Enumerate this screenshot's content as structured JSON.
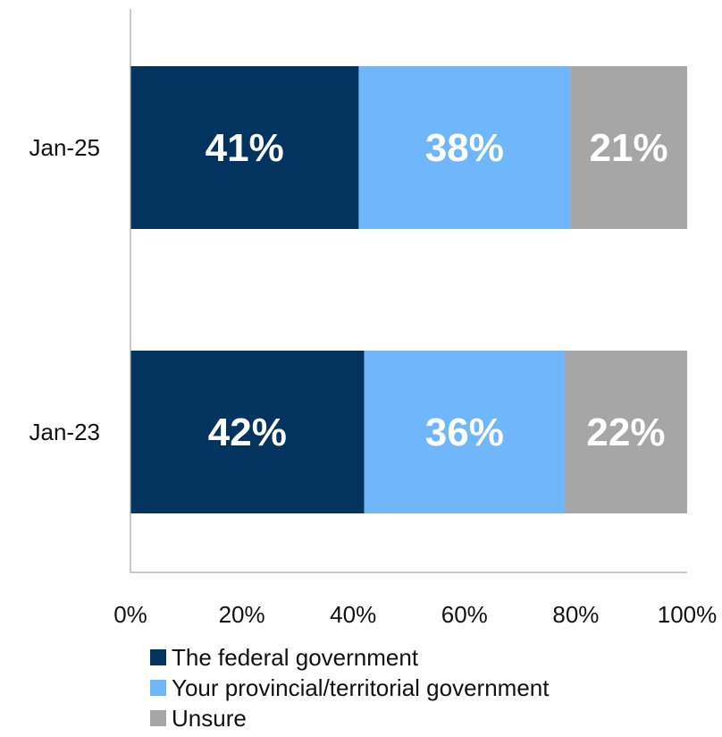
{
  "chart_data": {
    "type": "bar",
    "orientation": "horizontal",
    "stacked": true,
    "categories": [
      "Jan-25",
      "Jan-23"
    ],
    "series": [
      {
        "name": "The federal government",
        "values": [
          41,
          42
        ],
        "color": "#03345f"
      },
      {
        "name": "Your provincial/territorial government",
        "values": [
          38,
          36
        ],
        "color": "#6fb6fb"
      },
      {
        "name": "Unsure",
        "values": [
          21,
          22
        ],
        "color": "#a6a6a6"
      }
    ],
    "data_labels": [
      [
        "41%",
        "42%"
      ],
      [
        "38%",
        "36%"
      ],
      [
        "21%",
        "22%"
      ]
    ],
    "xlim": [
      0,
      100
    ],
    "x_ticks": [
      {
        "value": 0,
        "label": "0%"
      },
      {
        "value": 20,
        "label": "20%"
      },
      {
        "value": 40,
        "label": "40%"
      },
      {
        "value": 60,
        "label": "60%"
      },
      {
        "value": 80,
        "label": "80%"
      },
      {
        "value": 100,
        "label": "100%"
      }
    ],
    "grid": false,
    "legend_position": "bottom",
    "title": "",
    "xlabel": "",
    "ylabel": ""
  }
}
